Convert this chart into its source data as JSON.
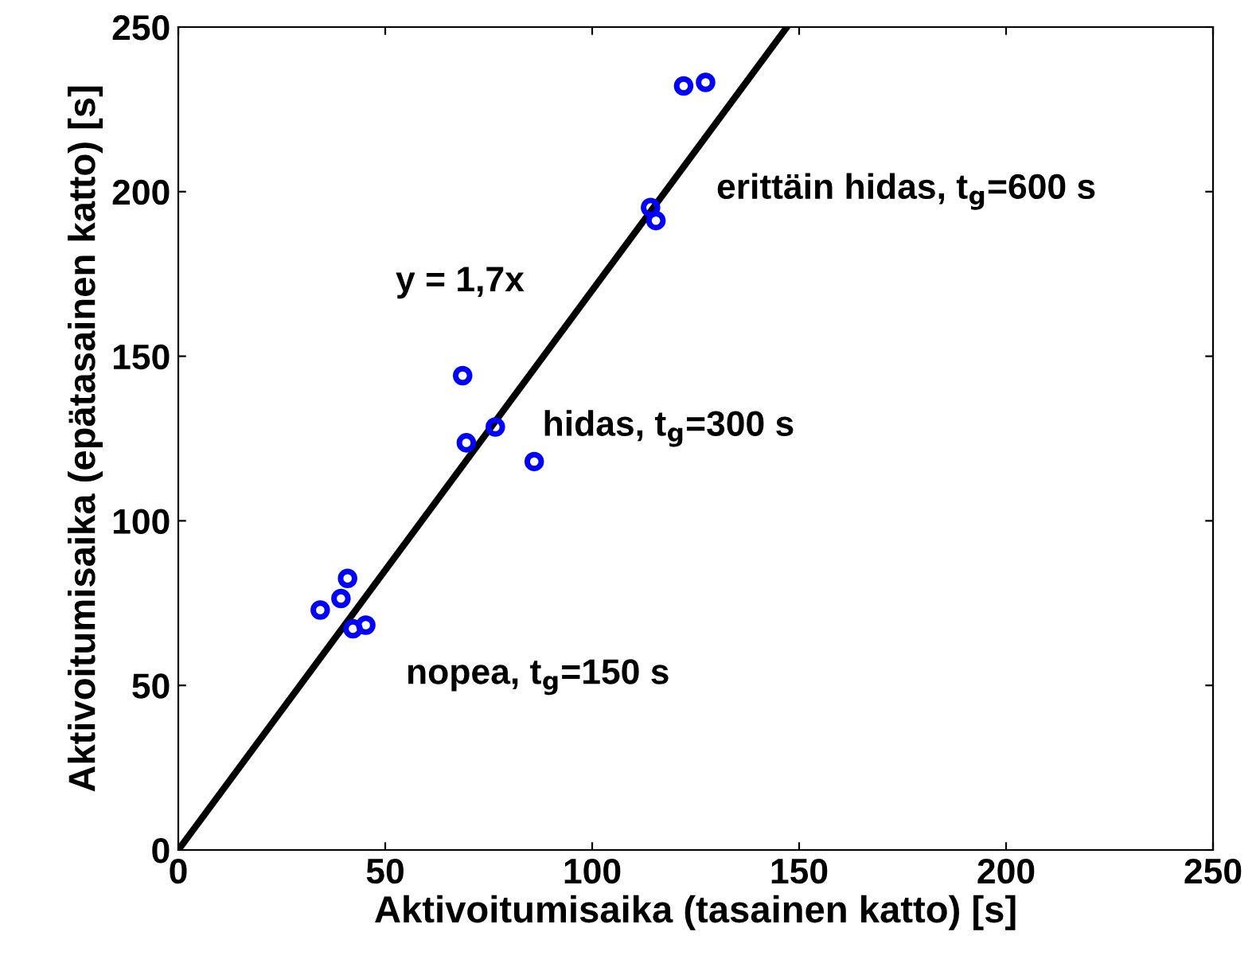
{
  "chart_data": {
    "type": "scatter",
    "xlabel": "Aktivoitumisaika (tasainen katto) [s]",
    "ylabel": "Aktivoitumisaika (epätasainen katto) [s]",
    "series": [
      {
        "color": "#0000ff",
        "marker": "circle",
        "x": [
          34.3,
          39.3,
          40.9,
          42.2,
          45.3,
          68.7,
          69.6,
          76.6,
          86.0,
          122.1,
          127.4,
          114.1,
          115.4
        ],
        "values": [
          72.9,
          76.4,
          82.5,
          67.2,
          68.3,
          144.1,
          123.7,
          128.5,
          118.0,
          232.1,
          233.2,
          195.2,
          191.2
        ]
      },
      {
        "type": "line",
        "color": "#000000",
        "line_style": "solid",
        "x": [
          0,
          147.06
        ],
        "values": [
          0,
          250
        ]
      }
    ],
    "annotations": [
      "y = 1,7x",
      "erittäin hidas, t$_{g}$=600 s",
      "hidas, t$_{g}$=300 s",
      "nopea, t$_{g}$=150 s"
    ],
    "xlim": [
      0,
      250
    ],
    "ylim": [
      0,
      250
    ],
    "xticks": [
      0,
      50,
      100,
      150,
      200,
      250
    ],
    "yticks": [
      0,
      50,
      100,
      150,
      200,
      250
    ],
    "grid": false,
    "legend": false
  }
}
